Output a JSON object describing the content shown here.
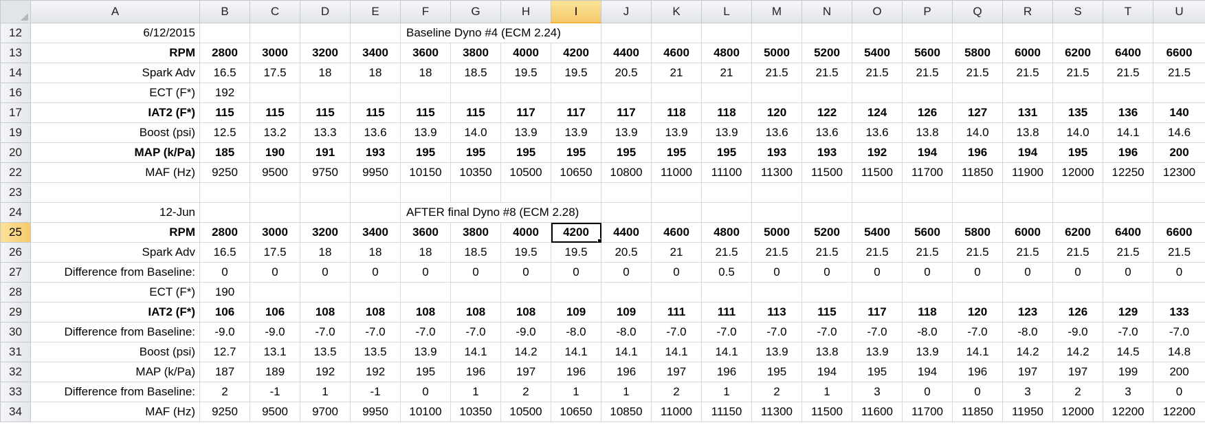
{
  "columns": [
    "A",
    "B",
    "C",
    "D",
    "E",
    "F",
    "G",
    "H",
    "I",
    "J",
    "K",
    "L",
    "M",
    "N",
    "O",
    "P",
    "Q",
    "R",
    "S",
    "T",
    "U"
  ],
  "active_column": "I",
  "active_row": "25",
  "section1": {
    "date": "6/12/2015",
    "title": "Baseline Dyno #4 (ECM 2.24)"
  },
  "section2": {
    "date": "12-Jun",
    "title": "AFTER final Dyno #8 (ECM 2.28)"
  },
  "rows": [
    {
      "row": "12",
      "label": "",
      "values": [],
      "style": "",
      "title_row": "section1"
    },
    {
      "row": "13",
      "label": "RPM",
      "values": [
        "2800",
        "3000",
        "3200",
        "3400",
        "3600",
        "3800",
        "4000",
        "4200",
        "4400",
        "4600",
        "4800",
        "5000",
        "5200",
        "5400",
        "5600",
        "5800",
        "6000",
        "6200",
        "6400",
        "6600"
      ],
      "style": "bold thick-bottom"
    },
    {
      "row": "14",
      "label": "Spark Adv",
      "values": [
        "16.5",
        "17.5",
        "18",
        "18",
        "18",
        "18.5",
        "19.5",
        "19.5",
        "20.5",
        "21",
        "21",
        "21.5",
        "21.5",
        "21.5",
        "21.5",
        "21.5",
        "21.5",
        "21.5",
        "21.5",
        "21.5"
      ],
      "style": ""
    },
    {
      "row": "16",
      "label": "ECT (F*)",
      "values": [
        "192"
      ],
      "style": ""
    },
    {
      "row": "17",
      "label": "IAT2 (F*)",
      "values": [
        "115",
        "115",
        "115",
        "115",
        "115",
        "115",
        "117",
        "117",
        "117",
        "118",
        "118",
        "120",
        "122",
        "124",
        "126",
        "127",
        "131",
        "135",
        "136",
        "140"
      ],
      "style": "green"
    },
    {
      "row": "19",
      "label": "Boost (psi)",
      "values": [
        "12.5",
        "13.2",
        "13.3",
        "13.6",
        "13.9",
        "14.0",
        "13.9",
        "13.9",
        "13.9",
        "13.9",
        "13.9",
        "13.6",
        "13.6",
        "13.6",
        "13.8",
        "14.0",
        "13.8",
        "14.0",
        "14.1",
        "14.6"
      ],
      "style": ""
    },
    {
      "row": "20",
      "label": "MAP (k/Pa)",
      "values": [
        "185",
        "190",
        "191",
        "193",
        "195",
        "195",
        "195",
        "195",
        "195",
        "195",
        "195",
        "193",
        "193",
        "192",
        "194",
        "196",
        "194",
        "195",
        "196",
        "200"
      ],
      "style": "lav"
    },
    {
      "row": "22",
      "label": "MAF (Hz)",
      "values": [
        "9250",
        "9500",
        "9750",
        "9950",
        "10150",
        "10350",
        "10500",
        "10650",
        "10800",
        "11000",
        "11100",
        "11300",
        "11500",
        "11500",
        "11700",
        "11850",
        "11900",
        "12000",
        "12250",
        "12300"
      ],
      "style": ""
    },
    {
      "row": "23",
      "label": "",
      "values": [],
      "style": ""
    },
    {
      "row": "24",
      "label": "",
      "values": [],
      "style": "",
      "title_row": "section2"
    },
    {
      "row": "25",
      "label": "RPM",
      "values": [
        "2800",
        "3000",
        "3200",
        "3400",
        "3600",
        "3800",
        "4000",
        "4200",
        "4400",
        "4600",
        "4800",
        "5000",
        "5200",
        "5400",
        "5600",
        "5800",
        "6000",
        "6200",
        "6400",
        "6600"
      ],
      "style": "bold thick-bottom"
    },
    {
      "row": "26",
      "label": "Spark Adv",
      "values": [
        "16.5",
        "17.5",
        "18",
        "18",
        "18",
        "18.5",
        "19.5",
        "19.5",
        "20.5",
        "21",
        "21.5",
        "21.5",
        "21.5",
        "21.5",
        "21.5",
        "21.5",
        "21.5",
        "21.5",
        "21.5",
        "21.5"
      ],
      "style": ""
    },
    {
      "row": "27",
      "label": "Difference from Baseline:",
      "values": [
        "0",
        "0",
        "0",
        "0",
        "0",
        "0",
        "0",
        "0",
        "0",
        "0",
        "0.5",
        "0",
        "0",
        "0",
        "0",
        "0",
        "0",
        "0",
        "0",
        "0"
      ],
      "style": "diffred"
    },
    {
      "row": "28",
      "label": "ECT (F*)",
      "values": [
        "190"
      ],
      "style": ""
    },
    {
      "row": "29",
      "label": "IAT2 (F*)",
      "values": [
        "106",
        "106",
        "108",
        "108",
        "108",
        "108",
        "108",
        "109",
        "109",
        "111",
        "111",
        "113",
        "115",
        "117",
        "118",
        "120",
        "123",
        "126",
        "129",
        "133"
      ],
      "style": "green2"
    },
    {
      "row": "30",
      "label": "Difference from Baseline:",
      "values": [
        "-9.0",
        "-9.0",
        "-7.0",
        "-7.0",
        "-7.0",
        "-7.0",
        "-9.0",
        "-8.0",
        "-8.0",
        "-7.0",
        "-7.0",
        "-7.0",
        "-7.0",
        "-7.0",
        "-8.0",
        "-7.0",
        "-8.0",
        "-9.0",
        "-7.0",
        "-7.0"
      ],
      "style": "diffdark"
    },
    {
      "row": "31",
      "label": "Boost (psi)",
      "values": [
        "12.7",
        "13.1",
        "13.5",
        "13.5",
        "13.9",
        "14.1",
        "14.2",
        "14.1",
        "14.1",
        "14.1",
        "14.1",
        "13.9",
        "13.8",
        "13.9",
        "13.9",
        "14.1",
        "14.2",
        "14.2",
        "14.5",
        "14.8"
      ],
      "style": ""
    },
    {
      "row": "32",
      "label": "MAP (k/Pa)",
      "values": [
        "187",
        "189",
        "192",
        "192",
        "195",
        "196",
        "197",
        "196",
        "196",
        "197",
        "196",
        "195",
        "194",
        "195",
        "194",
        "196",
        "197",
        "197",
        "199",
        "200"
      ],
      "style": "lav2"
    },
    {
      "row": "33",
      "label": "Difference from Baseline:",
      "values": [
        "2",
        "-1",
        "1",
        "-1",
        "0",
        "1",
        "2",
        "1",
        "1",
        "2",
        "1",
        "2",
        "1",
        "3",
        "0",
        "0",
        "3",
        "2",
        "3",
        "0"
      ],
      "style": "diffred"
    },
    {
      "row": "34",
      "label": "MAF (Hz)",
      "values": [
        "9250",
        "9500",
        "9700",
        "9950",
        "10100",
        "10350",
        "10500",
        "10650",
        "10850",
        "11000",
        "11150",
        "11300",
        "11500",
        "11600",
        "11700",
        "11850",
        "11950",
        "12000",
        "12200",
        "12200"
      ],
      "style": ""
    }
  ],
  "selected_cell": {
    "row": "25",
    "column": "I"
  }
}
